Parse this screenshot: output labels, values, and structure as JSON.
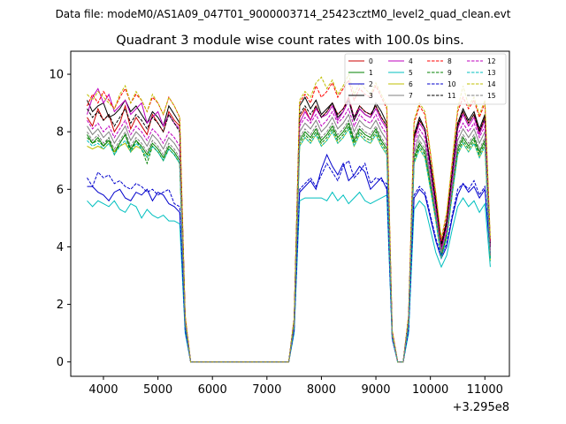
{
  "suptitle": "Data file: modeM0/AS1A09_047T01_9000003714_25423cztM0_level2_quad_clean.evt",
  "chart_data": {
    "type": "line",
    "title": "Quadrant 3 module wise count rates with 100.0s bins.",
    "xlabel": "",
    "ylabel": "",
    "x_offset_label": "+3.295e8",
    "xlim": [
      3400,
      11450
    ],
    "ylim": [
      -0.5,
      10.8
    ],
    "x_ticks": [
      4000,
      5000,
      6000,
      7000,
      8000,
      9000,
      10000,
      11000
    ],
    "y_ticks": [
      0,
      2,
      4,
      6,
      8,
      10
    ],
    "grid": false,
    "legend_position": "top-right",
    "x": [
      3700,
      3800,
      3900,
      4000,
      4100,
      4200,
      4300,
      4400,
      4500,
      4600,
      4700,
      4800,
      4900,
      5000,
      5100,
      5200,
      5300,
      5400,
      5500,
      5600,
      7400,
      7500,
      7600,
      7700,
      7800,
      7900,
      8000,
      8100,
      8200,
      8300,
      8400,
      8500,
      8600,
      8700,
      8800,
      8900,
      9000,
      9100,
      9200,
      9300,
      9400,
      9500,
      9600,
      9700,
      9800,
      9900,
      10000,
      10100,
      10200,
      10300,
      10400,
      10500,
      10600,
      10700,
      10800,
      10900,
      11000,
      11100
    ],
    "series": [
      {
        "name": "0",
        "color": "#cc0000",
        "dash": false,
        "values": [
          8.5,
          8.2,
          8.8,
          8.4,
          8.6,
          8.0,
          8.3,
          8.9,
          8.1,
          8.5,
          8.2,
          7.9,
          8.6,
          8.3,
          8.0,
          8.7,
          8.4,
          8.2,
          1.5,
          0,
          0,
          1.4,
          8.5,
          8.8,
          8.4,
          8.9,
          8.5,
          8.7,
          9.0,
          8.6,
          8.8,
          9.2,
          8.5,
          8.9,
          8.7,
          8.6,
          8.9,
          8.5,
          8.2,
          1.0,
          0,
          0,
          1.5,
          7.8,
          8.4,
          8.1,
          6.8,
          5.5,
          4.0,
          4.8,
          6.5,
          8.2,
          8.7,
          8.3,
          8.6,
          8.0,
          8.5,
          4.0
        ]
      },
      {
        "name": "1",
        "color": "#008000",
        "dash": false,
        "values": [
          7.9,
          7.6,
          7.8,
          7.5,
          7.7,
          7.3,
          7.6,
          7.9,
          7.4,
          7.7,
          7.5,
          7.2,
          7.6,
          7.4,
          7.1,
          7.5,
          7.3,
          7.0,
          1.4,
          0,
          0,
          1.3,
          7.7,
          8.0,
          7.8,
          8.1,
          7.7,
          7.9,
          8.2,
          7.8,
          8.0,
          8.3,
          7.7,
          8.1,
          7.9,
          7.8,
          8.1,
          7.7,
          7.4,
          0.9,
          0,
          0,
          1.4,
          7.1,
          7.6,
          7.3,
          6.2,
          5.0,
          3.7,
          4.4,
          5.9,
          7.4,
          7.8,
          7.5,
          7.8,
          7.3,
          7.7,
          3.6
        ]
      },
      {
        "name": "2",
        "color": "#0000cc",
        "dash": false,
        "values": [
          6.1,
          6.1,
          5.9,
          5.8,
          5.6,
          5.9,
          6.0,
          5.7,
          5.6,
          5.9,
          5.8,
          6.0,
          5.6,
          5.9,
          5.8,
          5.5,
          5.4,
          5.2,
          1.1,
          0,
          0,
          1.1,
          5.9,
          6.1,
          6.3,
          6.0,
          6.7,
          7.2,
          6.8,
          6.5,
          6.9,
          6.3,
          6.5,
          6.8,
          6.6,
          6.0,
          6.2,
          6.4,
          6.0,
          0.8,
          0,
          0,
          1.1,
          5.7,
          6.0,
          5.8,
          5.0,
          4.2,
          3.6,
          4.0,
          5.0,
          5.8,
          6.2,
          5.9,
          6.1,
          5.7,
          6.0,
          3.7
        ]
      },
      {
        "name": "3",
        "color": "#000000",
        "dash": false,
        "values": [
          9.1,
          8.7,
          8.9,
          9.0,
          8.5,
          8.6,
          8.8,
          9.1,
          8.7,
          8.9,
          8.6,
          8.3,
          8.7,
          8.5,
          8.2,
          8.9,
          8.6,
          8.3,
          1.5,
          0,
          0,
          1.5,
          8.9,
          9.2,
          8.8,
          9.1,
          8.6,
          8.8,
          9.0,
          8.5,
          8.7,
          9.1,
          8.4,
          8.8,
          8.6,
          8.5,
          9.0,
          8.7,
          8.3,
          1.0,
          0,
          0,
          1.5,
          7.9,
          8.5,
          8.1,
          6.9,
          5.6,
          4.1,
          4.9,
          6.6,
          8.3,
          8.8,
          8.4,
          8.7,
          8.1,
          8.6,
          4.1
        ]
      },
      {
        "name": "4",
        "color": "#bf00bf",
        "dash": false,
        "values": [
          8.6,
          9.2,
          9.5,
          9.0,
          9.3,
          8.7,
          8.9,
          9.1,
          8.6,
          8.8,
          9.0,
          8.3,
          8.5,
          8.7,
          8.2,
          8.6,
          8.3,
          8.1,
          1.5,
          0,
          0,
          1.4,
          8.3,
          8.7,
          8.4,
          8.8,
          8.5,
          8.6,
          8.9,
          8.4,
          8.7,
          9.1,
          8.5,
          8.8,
          8.6,
          8.5,
          8.8,
          8.4,
          8.1,
          1.0,
          0,
          0,
          1.5,
          7.7,
          8.3,
          8.0,
          6.7,
          5.4,
          3.9,
          4.7,
          6.4,
          8.1,
          8.6,
          8.2,
          8.5,
          7.9,
          8.4,
          4.0
        ]
      },
      {
        "name": "5",
        "color": "#00bfbf",
        "dash": false,
        "values": [
          5.6,
          5.4,
          5.6,
          5.5,
          5.4,
          5.6,
          5.3,
          5.2,
          5.5,
          5.4,
          5.0,
          5.3,
          5.1,
          5.0,
          5.1,
          4.9,
          4.9,
          4.8,
          1.0,
          0,
          0,
          1.0,
          5.6,
          5.7,
          5.7,
          5.7,
          5.7,
          5.6,
          5.9,
          5.6,
          5.8,
          5.5,
          5.7,
          5.9,
          5.6,
          5.5,
          5.6,
          5.7,
          5.8,
          0.8,
          0,
          0,
          1.0,
          5.3,
          5.6,
          5.4,
          4.6,
          3.8,
          3.3,
          3.7,
          4.6,
          5.4,
          5.7,
          5.4,
          5.6,
          5.2,
          5.5,
          3.3
        ]
      },
      {
        "name": "6",
        "color": "#bfbf00",
        "dash": false,
        "values": [
          7.5,
          7.4,
          7.5,
          7.4,
          7.6,
          7.3,
          7.5,
          7.6,
          7.3,
          7.5,
          7.4,
          7.1,
          7.5,
          7.3,
          7.0,
          7.4,
          7.2,
          6.9,
          1.3,
          0,
          0,
          1.3,
          7.5,
          7.8,
          7.6,
          7.9,
          7.5,
          7.7,
          8.0,
          7.6,
          7.8,
          8.1,
          7.5,
          7.9,
          7.7,
          7.6,
          7.9,
          7.5,
          7.2,
          0.9,
          0,
          0,
          1.3,
          6.9,
          7.4,
          7.1,
          6.0,
          4.9,
          3.6,
          4.3,
          5.8,
          7.2,
          7.6,
          7.3,
          7.6,
          7.1,
          7.5,
          3.5
        ]
      },
      {
        "name": "7",
        "color": "#808080",
        "dash": false,
        "values": [
          8.2,
          7.9,
          8.1,
          7.8,
          8.0,
          7.6,
          7.9,
          8.2,
          7.7,
          8.0,
          7.8,
          7.5,
          7.9,
          7.7,
          7.4,
          7.8,
          7.6,
          7.3,
          1.4,
          0,
          0,
          1.4,
          8.0,
          8.3,
          8.1,
          8.4,
          8.0,
          8.2,
          8.5,
          8.1,
          8.3,
          8.6,
          8.0,
          8.4,
          8.2,
          8.1,
          8.4,
          8.0,
          7.7,
          0.9,
          0,
          0,
          1.4,
          7.3,
          7.9,
          7.6,
          6.4,
          5.2,
          3.8,
          4.5,
          6.1,
          7.7,
          8.1,
          7.8,
          8.1,
          7.6,
          8.0,
          3.8
        ]
      },
      {
        "name": "8",
        "color": "#ff0000",
        "dash": true,
        "values": [
          8.9,
          9.3,
          9.0,
          9.4,
          9.1,
          8.8,
          9.2,
          9.5,
          9.0,
          9.3,
          9.1,
          8.7,
          9.2,
          9.0,
          8.6,
          9.2,
          8.9,
          8.5,
          1.6,
          0,
          0,
          1.5,
          9.0,
          9.3,
          9.0,
          9.6,
          9.2,
          9.4,
          9.7,
          9.2,
          9.5,
          9.8,
          9.1,
          9.5,
          9.3,
          9.2,
          9.6,
          9.2,
          8.8,
          1.1,
          0,
          0,
          1.6,
          8.3,
          8.9,
          8.6,
          7.2,
          5.8,
          4.2,
          5.1,
          6.9,
          8.7,
          9.2,
          8.8,
          9.1,
          8.5,
          9.0,
          4.2
        ]
      },
      {
        "name": "9",
        "color": "#008000",
        "dash": true,
        "values": [
          7.8,
          7.6,
          7.7,
          7.5,
          7.8,
          7.2,
          7.6,
          7.9,
          7.3,
          7.7,
          7.4,
          6.9,
          7.5,
          7.3,
          7.0,
          7.4,
          7.2,
          6.9,
          1.3,
          0,
          0,
          1.3,
          7.6,
          7.9,
          7.7,
          8.0,
          7.6,
          7.8,
          8.1,
          7.7,
          7.9,
          8.2,
          7.6,
          8.0,
          7.8,
          7.7,
          8.0,
          7.6,
          7.3,
          0.9,
          0,
          0,
          1.3,
          7.0,
          7.5,
          7.2,
          6.1,
          5.0,
          3.7,
          4.4,
          5.9,
          7.3,
          7.7,
          7.4,
          7.7,
          7.2,
          7.6,
          3.6
        ]
      },
      {
        "name": "10",
        "color": "#0000cc",
        "dash": true,
        "values": [
          6.4,
          6.1,
          6.6,
          6.4,
          6.5,
          6.2,
          6.3,
          6.1,
          6.0,
          6.2,
          6.1,
          5.9,
          6.0,
          5.8,
          5.9,
          6.0,
          5.5,
          5.4,
          1.1,
          0,
          0,
          1.1,
          6.0,
          6.2,
          6.4,
          6.1,
          6.5,
          6.9,
          6.6,
          6.3,
          6.8,
          7.0,
          6.4,
          6.6,
          6.9,
          6.2,
          6.4,
          6.3,
          6.2,
          0.8,
          0,
          0,
          1.1,
          5.8,
          6.1,
          5.9,
          5.1,
          4.3,
          3.7,
          4.1,
          5.1,
          6.0,
          6.2,
          6.0,
          6.3,
          5.8,
          6.1,
          3.8
        ]
      },
      {
        "name": "11",
        "color": "#000000",
        "dash": true,
        "values": [
          8.8,
          8.5,
          8.7,
          8.4,
          8.6,
          8.2,
          8.5,
          8.8,
          8.3,
          8.6,
          8.4,
          8.1,
          8.5,
          8.3,
          8.0,
          8.6,
          8.3,
          8.0,
          1.5,
          0,
          0,
          1.4,
          8.6,
          8.9,
          8.6,
          8.9,
          8.5,
          8.7,
          9.0,
          8.6,
          8.8,
          9.1,
          8.5,
          8.9,
          8.7,
          8.6,
          8.9,
          8.5,
          8.2,
          1.0,
          0,
          0,
          1.5,
          7.8,
          8.4,
          8.1,
          6.8,
          5.5,
          4.0,
          4.8,
          6.5,
          8.2,
          8.7,
          8.3,
          8.6,
          8.0,
          8.5,
          4.0
        ]
      },
      {
        "name": "12",
        "color": "#bf00bf",
        "dash": true,
        "values": [
          8.4,
          8.1,
          8.3,
          8.0,
          8.2,
          7.8,
          8.1,
          8.4,
          7.9,
          8.2,
          8.0,
          7.7,
          8.1,
          7.9,
          7.6,
          8.0,
          7.8,
          7.5,
          1.4,
          0,
          0,
          1.4,
          8.2,
          8.5,
          8.3,
          8.6,
          8.2,
          8.4,
          8.7,
          8.3,
          8.5,
          8.8,
          8.2,
          8.6,
          8.4,
          8.3,
          8.6,
          8.2,
          7.9,
          1.0,
          0,
          0,
          1.4,
          7.5,
          8.1,
          7.8,
          6.6,
          5.3,
          3.9,
          4.6,
          6.3,
          7.9,
          8.3,
          8.0,
          8.3,
          7.8,
          8.2,
          3.9
        ]
      },
      {
        "name": "13",
        "color": "#00bfbf",
        "dash": true,
        "values": [
          7.7,
          7.5,
          7.6,
          7.4,
          7.6,
          7.2,
          7.5,
          7.7,
          7.3,
          7.6,
          7.4,
          7.1,
          7.5,
          7.3,
          7.0,
          7.4,
          7.2,
          6.9,
          1.3,
          0,
          0,
          1.3,
          7.5,
          7.8,
          7.6,
          7.9,
          7.5,
          7.7,
          8.0,
          7.6,
          7.8,
          8.1,
          7.5,
          7.9,
          7.7,
          7.6,
          7.9,
          7.5,
          7.2,
          0.9,
          0,
          0,
          1.3,
          6.9,
          7.4,
          7.1,
          6.0,
          4.9,
          3.6,
          4.3,
          5.8,
          7.2,
          7.6,
          7.3,
          7.6,
          7.1,
          7.5,
          3.5
        ]
      },
      {
        "name": "14",
        "color": "#bfbf00",
        "dash": true,
        "values": [
          9.3,
          9.1,
          9.4,
          9.2,
          9.0,
          8.8,
          9.3,
          9.6,
          9.0,
          9.4,
          9.1,
          8.7,
          9.3,
          9.0,
          8.6,
          9.2,
          8.9,
          8.5,
          1.6,
          0,
          0,
          1.5,
          9.1,
          9.4,
          9.2,
          9.7,
          9.9,
          9.5,
          9.8,
          9.3,
          9.6,
          10.0,
          9.3,
          9.7,
          9.5,
          9.3,
          9.7,
          9.3,
          8.9,
          1.1,
          0,
          0,
          1.6,
          8.4,
          9.0,
          8.7,
          7.3,
          5.9,
          4.3,
          5.2,
          7.0,
          8.8,
          9.6,
          8.9,
          9.2,
          8.6,
          9.1,
          4.3
        ]
      },
      {
        "name": "15",
        "color": "#808080",
        "dash": true,
        "values": [
          8.0,
          7.7,
          7.9,
          7.6,
          7.8,
          7.4,
          7.7,
          8.0,
          7.5,
          7.8,
          7.6,
          7.3,
          7.7,
          7.5,
          7.2,
          7.6,
          7.4,
          7.1,
          1.4,
          0,
          0,
          1.3,
          7.8,
          8.1,
          7.9,
          8.2,
          7.8,
          8.0,
          8.3,
          7.9,
          8.1,
          8.4,
          7.8,
          8.2,
          8.0,
          7.9,
          8.2,
          7.8,
          7.5,
          0.9,
          0,
          0,
          1.4,
          7.2,
          7.7,
          7.4,
          6.3,
          5.1,
          3.8,
          4.5,
          6.0,
          7.5,
          7.9,
          7.6,
          7.9,
          7.4,
          7.8,
          3.7
        ]
      }
    ]
  }
}
